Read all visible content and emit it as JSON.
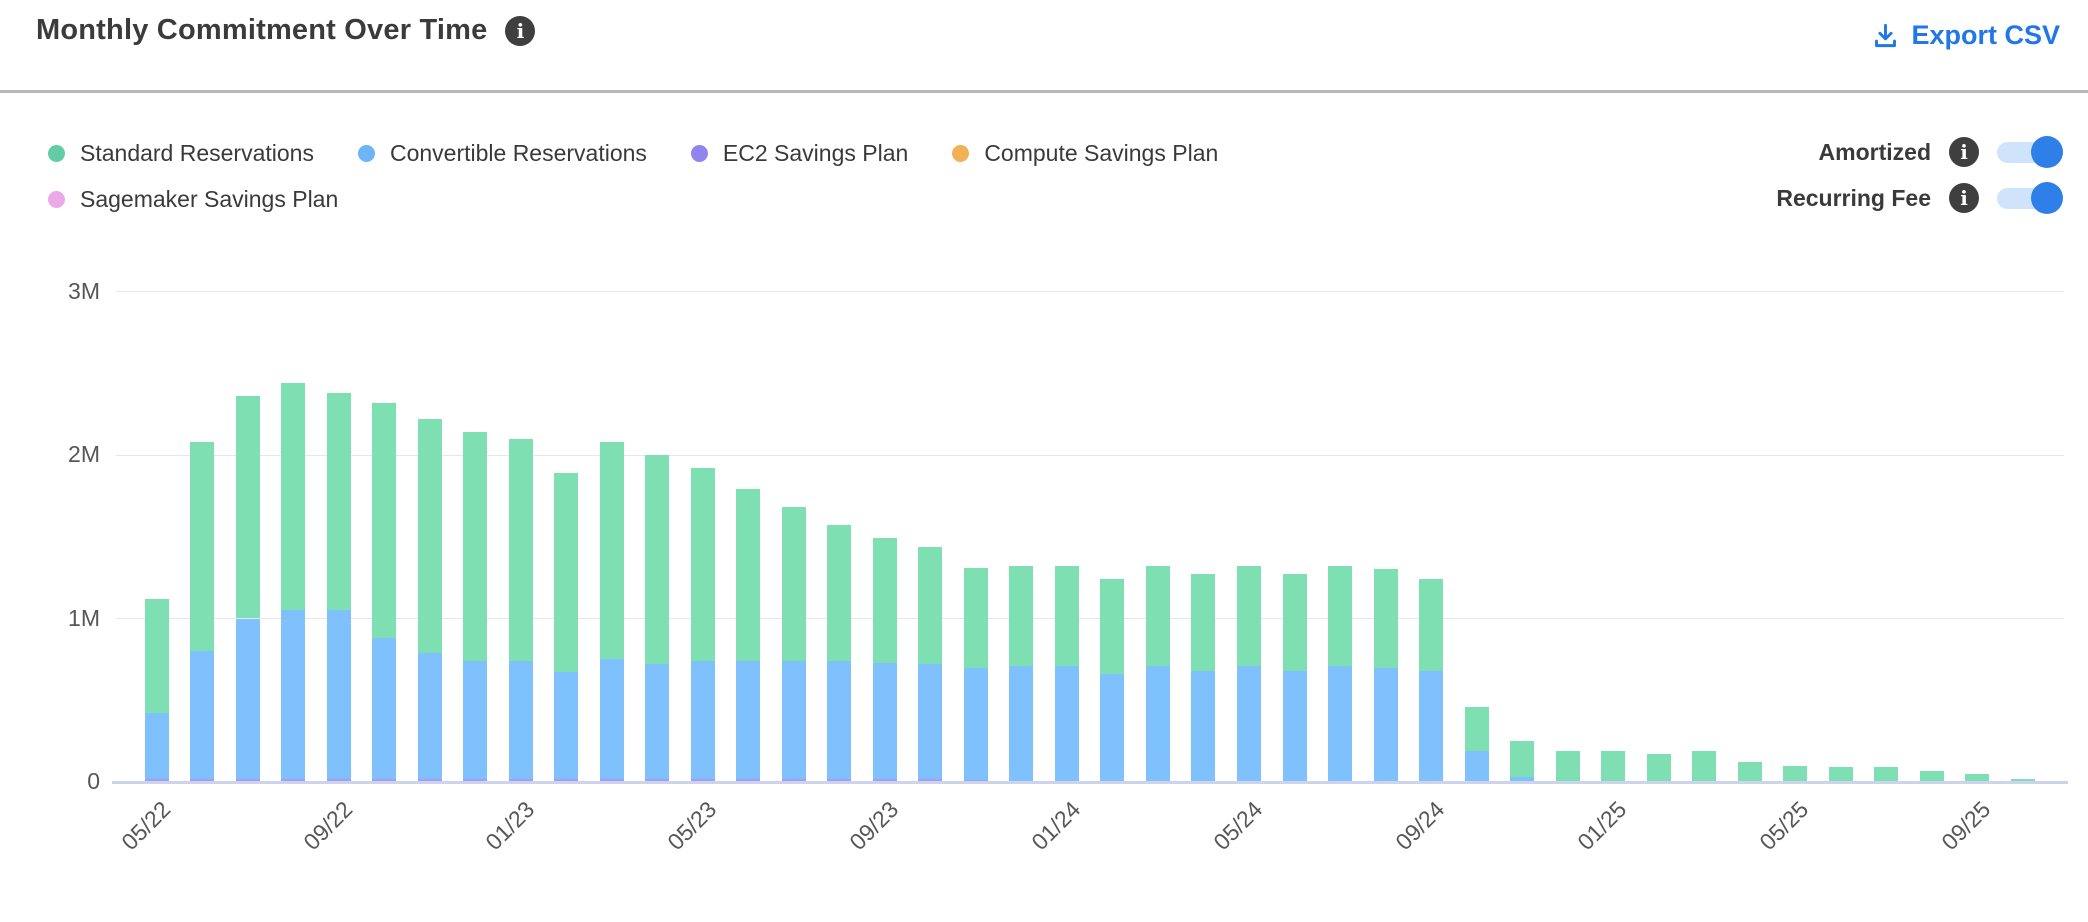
{
  "header": {
    "title": "Monthly Commitment Over Time",
    "export_label": "Export CSV"
  },
  "legend": {
    "items": [
      {
        "label": "Standard Reservations",
        "color": "#62cda4"
      },
      {
        "label": "Convertible Reservations",
        "color": "#6db5f7"
      },
      {
        "label": "EC2 Savings Plan",
        "color": "#9184f0"
      },
      {
        "label": "Compute Savings Plan",
        "color": "#f2b155"
      },
      {
        "label": "Sagemaker Savings Plan",
        "color": "#eca9e9"
      }
    ],
    "rows": [
      4,
      1
    ]
  },
  "toggles": [
    {
      "label": "Amortized",
      "state": "on"
    },
    {
      "label": "Recurring Fee",
      "state": "on"
    }
  ],
  "colors": {
    "accent_blue": "#2277e8",
    "toggle_track": "#cfe4fb",
    "toggle_knob": "#2e80e8",
    "info_icon_bg": "#3f3f3f",
    "gridline": "#e7e7e7",
    "axis_line": "#ccd3ea",
    "tick_text": "#575757",
    "title_text": "#3b3b3b"
  },
  "chart_data": {
    "type": "bar",
    "stacked": true,
    "title": "Monthly Commitment Over Time",
    "xlabel": "",
    "ylabel": "",
    "unit": "millions",
    "ylim": [
      0,
      3
    ],
    "y_ticks": [
      0,
      1,
      2,
      3
    ],
    "y_tick_labels": [
      "0",
      "1M",
      "2M",
      "3M"
    ],
    "x_tick_every": 4,
    "x_tick_labels": [
      "05/22",
      "09/22",
      "01/23",
      "05/23",
      "09/23",
      "01/24",
      "05/24",
      "09/24",
      "01/25",
      "05/25",
      "09/25"
    ],
    "legend_position": "top-left",
    "grid": true,
    "x": [
      "05/22",
      "06/22",
      "07/22",
      "08/22",
      "09/22",
      "10/22",
      "11/22",
      "12/22",
      "01/23",
      "02/23",
      "03/23",
      "04/23",
      "05/23",
      "06/23",
      "07/23",
      "08/23",
      "09/23",
      "10/23",
      "11/23",
      "12/23",
      "01/24",
      "02/24",
      "03/24",
      "04/24",
      "05/24",
      "06/24",
      "07/24",
      "08/24",
      "09/24",
      "10/24",
      "11/24",
      "12/24",
      "01/25",
      "02/25",
      "03/25",
      "04/25",
      "05/25",
      "06/25",
      "07/25",
      "08/25",
      "09/25",
      "10/25"
    ],
    "stack_order_bottom_to_top": [
      "EC2 Savings Plan",
      "Convertible Reservations",
      "Standard Reservations",
      "Compute Savings Plan",
      "Sagemaker Savings Plan"
    ],
    "series": [
      {
        "name": "Standard Reservations",
        "color": "#7edfb2",
        "values": [
          0.7,
          1.28,
          1.36,
          1.39,
          1.33,
          1.44,
          1.43,
          1.4,
          1.36,
          1.22,
          1.33,
          1.28,
          1.18,
          1.05,
          0.94,
          0.83,
          0.76,
          0.72,
          0.61,
          0.61,
          0.61,
          0.58,
          0.61,
          0.59,
          0.61,
          0.59,
          0.61,
          0.6,
          0.56,
          0.27,
          0.22,
          0.19,
          0.19,
          0.17,
          0.19,
          0.12,
          0.1,
          0.09,
          0.09,
          0.07,
          0.05,
          0.02
        ]
      },
      {
        "name": "Convertible Reservations",
        "color": "#7ec1fc",
        "values": [
          0.4,
          0.78,
          0.98,
          1.03,
          1.03,
          0.86,
          0.77,
          0.72,
          0.72,
          0.65,
          0.73,
          0.7,
          0.72,
          0.72,
          0.72,
          0.72,
          0.71,
          0.7,
          0.69,
          0.71,
          0.71,
          0.66,
          0.71,
          0.68,
          0.71,
          0.68,
          0.71,
          0.7,
          0.68,
          0.19,
          0.03,
          0,
          0,
          0,
          0,
          0,
          0,
          0,
          0,
          0,
          0,
          0
        ]
      },
      {
        "name": "EC2 Savings Plan",
        "color": "#a79bf6",
        "values": [
          0.02,
          0.02,
          0.02,
          0.02,
          0.02,
          0.02,
          0.02,
          0.02,
          0.02,
          0.02,
          0.02,
          0.02,
          0.02,
          0.02,
          0.02,
          0.02,
          0.02,
          0.02,
          0.01,
          0,
          0,
          0,
          0,
          0,
          0,
          0,
          0,
          0,
          0,
          0,
          0,
          0,
          0,
          0,
          0,
          0,
          0,
          0,
          0,
          0,
          0,
          0
        ]
      },
      {
        "name": "Compute Savings Plan",
        "color": "#f2b155",
        "values": [
          0,
          0,
          0,
          0,
          0,
          0,
          0,
          0,
          0,
          0,
          0,
          0,
          0,
          0,
          0,
          0,
          0,
          0,
          0,
          0,
          0,
          0,
          0,
          0,
          0,
          0,
          0,
          0,
          0,
          0,
          0,
          0,
          0,
          0,
          0,
          0,
          0,
          0,
          0,
          0,
          0,
          0
        ]
      },
      {
        "name": "Sagemaker Savings Plan",
        "color": "#eca9e9",
        "values": [
          0,
          0,
          0,
          0,
          0,
          0,
          0,
          0,
          0,
          0,
          0,
          0,
          0,
          0,
          0,
          0,
          0,
          0,
          0,
          0,
          0,
          0,
          0,
          0,
          0,
          0,
          0,
          0,
          0,
          0,
          0,
          0,
          0,
          0,
          0,
          0,
          0,
          0,
          0,
          0,
          0,
          0
        ]
      }
    ]
  }
}
